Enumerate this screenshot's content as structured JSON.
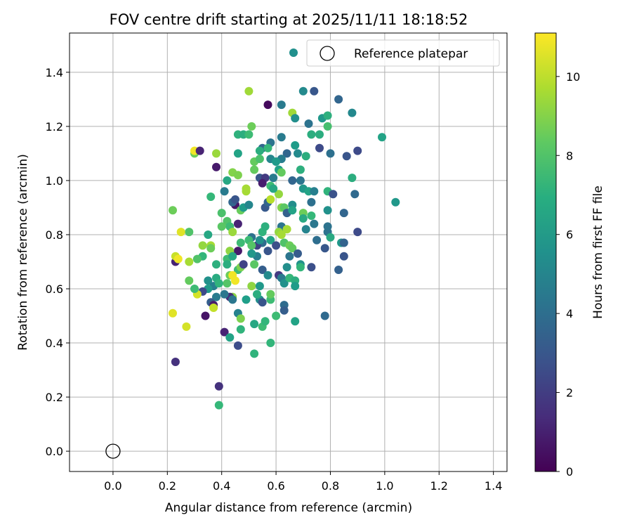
{
  "chart_data": {
    "type": "scatter",
    "title": "FOV centre drift starting at 2025/11/11 18:18:52",
    "xlabel": "Angular distance from reference (arcmin)",
    "ylabel": "Rotation from reference (arcmin)",
    "xlim": [
      -0.16,
      1.45
    ],
    "ylim": [
      -0.075,
      1.545
    ],
    "xticks": [
      "0.0",
      "0.2",
      "0.4",
      "0.6",
      "0.8",
      "1.0",
      "1.2",
      "1.4"
    ],
    "yticks": [
      "0.0",
      "0.2",
      "0.4",
      "0.6",
      "0.8",
      "1.0",
      "1.2",
      "1.4"
    ],
    "grid": true,
    "legend": {
      "placement": "top-right",
      "entries": [
        {
          "marker": "filled-circle",
          "color": "#21908d",
          "label": ""
        },
        {
          "marker": "open-circle",
          "color": "#000000",
          "label": "Reference platepar"
        }
      ]
    },
    "colorbar": {
      "label": "Hours from first FF file",
      "min": 0,
      "max": 11.1,
      "ticks": [
        "0",
        "2",
        "4",
        "6",
        "8",
        "10"
      ],
      "colormap": "viridis"
    },
    "reference_point": {
      "x": 0.0,
      "y": 0.0
    },
    "points": [
      [
        0.5,
        1.33,
        9.5
      ],
      [
        0.7,
        1.33,
        5.3
      ],
      [
        0.74,
        1.33,
        3.0
      ],
      [
        0.83,
        1.3,
        3.6
      ],
      [
        0.62,
        1.28,
        4.6
      ],
      [
        0.57,
        1.28,
        0.3
      ],
      [
        0.77,
        1.23,
        5.9
      ],
      [
        0.79,
        1.24,
        7.0
      ],
      [
        0.88,
        1.25,
        5.2
      ],
      [
        0.66,
        1.25,
        9.5
      ],
      [
        0.67,
        1.23,
        5.5
      ],
      [
        0.72,
        1.21,
        4.2
      ],
      [
        0.79,
        1.2,
        7.8
      ],
      [
        0.46,
        1.17,
        7.1
      ],
      [
        0.48,
        1.17,
        6.9
      ],
      [
        0.51,
        1.2,
        8.6
      ],
      [
        0.5,
        1.17,
        7.6
      ],
      [
        0.99,
        1.16,
        6.4
      ],
      [
        0.62,
        1.16,
        4.6
      ],
      [
        0.76,
        1.17,
        6.9
      ],
      [
        0.73,
        1.17,
        6.9
      ],
      [
        0.58,
        1.14,
        4.2
      ],
      [
        0.55,
        1.12,
        3.6
      ],
      [
        0.54,
        1.11,
        6.9
      ],
      [
        0.57,
        1.12,
        7.4
      ],
      [
        0.76,
        1.12,
        2.5
      ],
      [
        0.8,
        1.1,
        4.1
      ],
      [
        0.86,
        1.09,
        2.9
      ],
      [
        0.9,
        1.11,
        2.5
      ],
      [
        0.68,
        1.1,
        5.3
      ],
      [
        0.71,
        1.09,
        6.9
      ],
      [
        0.64,
        1.1,
        3.6
      ],
      [
        0.62,
        1.08,
        4.7
      ],
      [
        0.67,
        1.13,
        6.1
      ],
      [
        0.58,
        1.08,
        5.1
      ],
      [
        0.6,
        1.07,
        6.0
      ],
      [
        0.52,
        1.07,
        8.4
      ],
      [
        0.52,
        1.04,
        8.4
      ],
      [
        0.54,
        1.08,
        7.9
      ],
      [
        0.46,
        1.1,
        6.4
      ],
      [
        0.38,
        1.1,
        9.4
      ],
      [
        0.3,
        1.1,
        8.6
      ],
      [
        0.3,
        1.11,
        10.9
      ],
      [
        0.32,
        1.11,
        1.1
      ],
      [
        0.38,
        1.05,
        0.8
      ],
      [
        0.44,
        1.03,
        9.0
      ],
      [
        0.42,
        1.0,
        6.6
      ],
      [
        0.46,
        1.02,
        8.9
      ],
      [
        0.49,
        0.97,
        9.6
      ],
      [
        0.54,
        1.01,
        3.0
      ],
      [
        0.56,
        1.01,
        1.9
      ],
      [
        0.59,
        1.01,
        4.6
      ],
      [
        0.55,
        0.99,
        0.9
      ],
      [
        0.61,
        1.04,
        6.3
      ],
      [
        0.62,
        1.03,
        8.4
      ],
      [
        0.66,
        1.0,
        3.6
      ],
      [
        0.69,
        1.04,
        7.0
      ],
      [
        0.69,
        1.0,
        4.3
      ],
      [
        0.7,
        0.97,
        5.9
      ],
      [
        0.72,
        0.96,
        6.4
      ],
      [
        0.74,
        0.96,
        4.8
      ],
      [
        0.79,
        0.96,
        7.2
      ],
      [
        0.81,
        0.95,
        2.8
      ],
      [
        0.88,
        1.01,
        6.9
      ],
      [
        0.89,
        0.95,
        3.8
      ],
      [
        1.04,
        0.92,
        5.9
      ],
      [
        0.41,
        0.96,
        4.6
      ],
      [
        0.45,
        0.91,
        0.7
      ],
      [
        0.44,
        0.92,
        3.6
      ],
      [
        0.49,
        0.96,
        9.6
      ],
      [
        0.45,
        0.93,
        2.9
      ],
      [
        0.47,
        0.89,
        8.5
      ],
      [
        0.48,
        0.9,
        6.1
      ],
      [
        0.5,
        0.91,
        5.1
      ],
      [
        0.36,
        0.94,
        7.4
      ],
      [
        0.22,
        0.89,
        8.6
      ],
      [
        0.4,
        0.88,
        7.9
      ],
      [
        0.42,
        0.85,
        8.0
      ],
      [
        0.43,
        0.83,
        7.6
      ],
      [
        0.4,
        0.83,
        8.2
      ],
      [
        0.44,
        0.81,
        9.4
      ],
      [
        0.46,
        0.84,
        1.1
      ],
      [
        0.56,
        0.9,
        3.1
      ],
      [
        0.57,
        0.92,
        3.6
      ],
      [
        0.58,
        0.93,
        9.9
      ],
      [
        0.61,
        0.95,
        9.3
      ],
      [
        0.58,
        0.98,
        7.6
      ],
      [
        0.59,
        0.97,
        6.6
      ],
      [
        0.62,
        0.9,
        9.0
      ],
      [
        0.63,
        0.9,
        8.2
      ],
      [
        0.64,
        0.88,
        3.4
      ],
      [
        0.66,
        0.91,
        5.4
      ],
      [
        0.66,
        0.89,
        6.4
      ],
      [
        0.7,
        0.88,
        8.6
      ],
      [
        0.7,
        0.86,
        6.7
      ],
      [
        0.73,
        0.92,
        4.1
      ],
      [
        0.73,
        0.87,
        7.4
      ],
      [
        0.74,
        0.84,
        4.4
      ],
      [
        0.79,
        0.89,
        5.6
      ],
      [
        0.85,
        0.88,
        3.6
      ],
      [
        0.79,
        0.83,
        4.2
      ],
      [
        0.79,
        0.81,
        4.2
      ],
      [
        0.8,
        0.79,
        6.7
      ],
      [
        0.84,
        0.77,
        5.9
      ],
      [
        0.85,
        0.77,
        3.5
      ],
      [
        0.85,
        0.72,
        2.9
      ],
      [
        0.9,
        0.81,
        2.5
      ],
      [
        0.75,
        0.78,
        4.0
      ],
      [
        0.78,
        0.75,
        3.0
      ],
      [
        0.71,
        0.82,
        5.0
      ],
      [
        0.63,
        0.82,
        3.6
      ],
      [
        0.62,
        0.83,
        4.3
      ],
      [
        0.61,
        0.81,
        9.3
      ],
      [
        0.62,
        0.8,
        9.6
      ],
      [
        0.64,
        0.82,
        9.6
      ],
      [
        0.63,
        0.77,
        8.0
      ],
      [
        0.65,
        0.76,
        8.6
      ],
      [
        0.66,
        0.75,
        8.4
      ],
      [
        0.68,
        0.73,
        3.2
      ],
      [
        0.69,
        0.69,
        5.6
      ],
      [
        0.69,
        0.68,
        7.3
      ],
      [
        0.73,
        0.68,
        2.7
      ],
      [
        0.65,
        0.72,
        4.3
      ],
      [
        0.64,
        0.68,
        5.5
      ],
      [
        0.61,
        0.65,
        1.9
      ],
      [
        0.62,
        0.64,
        4.6
      ],
      [
        0.63,
        0.62,
        5.6
      ],
      [
        0.65,
        0.64,
        7.4
      ],
      [
        0.67,
        0.63,
        6.9
      ],
      [
        0.67,
        0.61,
        6.1
      ],
      [
        0.57,
        0.74,
        2.9
      ],
      [
        0.55,
        0.77,
        3.9
      ],
      [
        0.53,
        0.76,
        2.2
      ],
      [
        0.51,
        0.79,
        4.2
      ],
      [
        0.5,
        0.78,
        7.6
      ],
      [
        0.51,
        0.76,
        8.1
      ],
      [
        0.47,
        0.77,
        7.6
      ],
      [
        0.46,
        0.74,
        0.8
      ],
      [
        0.53,
        0.72,
        4.8
      ],
      [
        0.54,
        0.78,
        5.6
      ],
      [
        0.55,
        0.81,
        7.2
      ],
      [
        0.56,
        0.83,
        7.0
      ],
      [
        0.58,
        0.78,
        6.4
      ],
      [
        0.6,
        0.76,
        2.7
      ],
      [
        0.35,
        0.8,
        6.6
      ],
      [
        0.28,
        0.81,
        8.0
      ],
      [
        0.25,
        0.81,
        10.6
      ],
      [
        0.36,
        0.76,
        9.6
      ],
      [
        0.33,
        0.76,
        9.3
      ],
      [
        0.36,
        0.75,
        8.6
      ],
      [
        0.33,
        0.72,
        7.3
      ],
      [
        0.31,
        0.71,
        8.0
      ],
      [
        0.28,
        0.7,
        9.6
      ],
      [
        0.23,
        0.7,
        1.1
      ],
      [
        0.23,
        0.72,
        10.2
      ],
      [
        0.24,
        0.71,
        10.9
      ],
      [
        0.38,
        0.69,
        7.0
      ],
      [
        0.42,
        0.71,
        7.6
      ],
      [
        0.42,
        0.69,
        6.9
      ],
      [
        0.43,
        0.74,
        9.2
      ],
      [
        0.44,
        0.72,
        6.6
      ],
      [
        0.46,
        0.67,
        7.6
      ],
      [
        0.47,
        0.68,
        8.9
      ],
      [
        0.48,
        0.69,
        2.2
      ],
      [
        0.51,
        0.73,
        5.9
      ],
      [
        0.52,
        0.69,
        8.2
      ],
      [
        0.55,
        0.67,
        3.3
      ],
      [
        0.43,
        0.65,
        8.6
      ],
      [
        0.44,
        0.65,
        10.9
      ],
      [
        0.45,
        0.63,
        10.9
      ],
      [
        0.44,
        0.57,
        9.1
      ],
      [
        0.43,
        0.57,
        1.4
      ],
      [
        0.42,
        0.62,
        8.1
      ],
      [
        0.41,
        0.58,
        4.4
      ],
      [
        0.35,
        0.63,
        5.6
      ],
      [
        0.37,
        0.61,
        4.8
      ],
      [
        0.38,
        0.64,
        6.8
      ],
      [
        0.39,
        0.62,
        7.2
      ],
      [
        0.38,
        0.57,
        4.6
      ],
      [
        0.35,
        0.6,
        6.0
      ],
      [
        0.36,
        0.55,
        3.3
      ],
      [
        0.33,
        0.59,
        2.5
      ],
      [
        0.31,
        0.58,
        10.4
      ],
      [
        0.28,
        0.63,
        8.4
      ],
      [
        0.3,
        0.6,
        7.6
      ],
      [
        0.37,
        0.54,
        0.9
      ],
      [
        0.37,
        0.53,
        10.1
      ],
      [
        0.34,
        0.5,
        0.6
      ],
      [
        0.22,
        0.51,
        10.6
      ],
      [
        0.27,
        0.46,
        10.4
      ],
      [
        0.23,
        0.33,
        1.6
      ],
      [
        0.41,
        0.44,
        1.1
      ],
      [
        0.43,
        0.42,
        6.4
      ],
      [
        0.39,
        0.24,
        1.6
      ],
      [
        0.39,
        0.17,
        7.4
      ],
      [
        0.46,
        0.51,
        4.9
      ],
      [
        0.47,
        0.49,
        8.9
      ],
      [
        0.47,
        0.45,
        7.2
      ],
      [
        0.46,
        0.39,
        2.6
      ],
      [
        0.49,
        0.56,
        6.2
      ],
      [
        0.51,
        0.61,
        9.2
      ],
      [
        0.52,
        0.47,
        6.6
      ],
      [
        0.52,
        0.36,
        7.2
      ],
      [
        0.54,
        0.56,
        5.4
      ],
      [
        0.54,
        0.61,
        5.9
      ],
      [
        0.55,
        0.55,
        2.9
      ],
      [
        0.55,
        0.46,
        7.6
      ],
      [
        0.56,
        0.48,
        7.3
      ],
      [
        0.57,
        0.65,
        5.3
      ],
      [
        0.58,
        0.56,
        7.6
      ],
      [
        0.58,
        0.58,
        8.4
      ],
      [
        0.58,
        0.4,
        7.3
      ],
      [
        0.6,
        0.5,
        7.6
      ],
      [
        0.63,
        0.54,
        3.9
      ],
      [
        0.63,
        0.52,
        3.3
      ],
      [
        0.67,
        0.48,
        6.4
      ],
      [
        0.78,
        0.5,
        3.8
      ],
      [
        0.83,
        0.67,
        3.4
      ],
      [
        0.44,
        0.56,
        4.4
      ],
      [
        0.53,
        0.58,
        6.9
      ]
    ]
  }
}
